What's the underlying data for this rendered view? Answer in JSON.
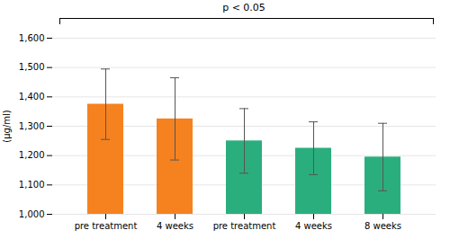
{
  "chart_data": {
    "type": "bar",
    "categories": [
      "pre treatment",
      "4 weeks",
      "pre treatment",
      "4 weeks",
      "8 weeks"
    ],
    "values": [
      1375,
      1325,
      1250,
      1225,
      1195
    ],
    "errors": [
      120,
      140,
      110,
      90,
      115
    ],
    "colors": [
      "#F5821F",
      "#F5821F",
      "#2BAE7E",
      "#2BAE7E",
      "#2BAE7E"
    ],
    "ylabel": "(μg/ml)",
    "annotation": "p < 0.05",
    "ylim": [
      1000,
      1600
    ],
    "yticks": [
      1000,
      1100,
      1200,
      1300,
      1400,
      1500,
      1600
    ],
    "grid": true
  }
}
